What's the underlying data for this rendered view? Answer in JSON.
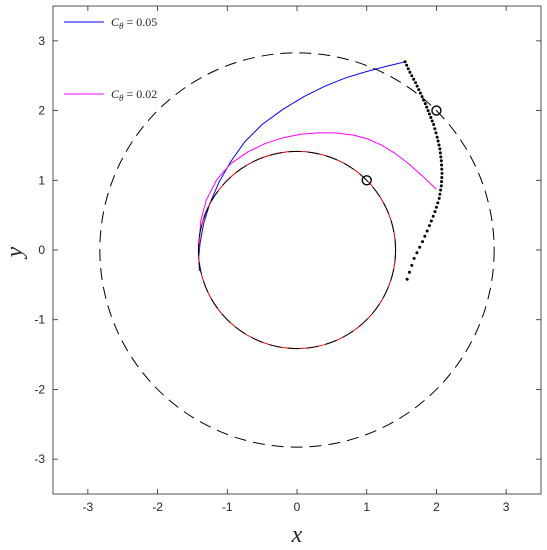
{
  "chart_data": {
    "type": "line",
    "xlabel": "x",
    "ylabel": "y",
    "xlim": [
      -3.5,
      3.5
    ],
    "ylim": [
      -3.5,
      3.5
    ],
    "xticks": [
      -3,
      -2,
      -1,
      0,
      1,
      2,
      3
    ],
    "yticks": [
      -3,
      -2,
      -1,
      0,
      1,
      2,
      3
    ],
    "xtick_labels": [
      "-3",
      "-2",
      "-1",
      "0",
      "1",
      "2",
      "3"
    ],
    "ytick_labels": [
      "-3",
      "-2",
      "-1",
      "0",
      "1",
      "2",
      "3"
    ],
    "grid": false,
    "legend_position": "top-left",
    "legend": [
      {
        "label_prefix": "C",
        "label_sub": "θ",
        "label_suffix": " = 0.05",
        "color": "#0000ff"
      },
      {
        "label_prefix": "C",
        "label_sub": "θ",
        "label_suffix": " = 0.02",
        "color": "#ff00ff"
      }
    ],
    "series": [
      {
        "name": "C_θ = 0.05",
        "color": "#0000ff",
        "x": [
          1.55,
          1.3,
          1.0,
          0.7,
          0.4,
          0.1,
          -0.2,
          -0.5,
          -0.75,
          -0.95,
          -1.12,
          -1.25,
          -1.34,
          -1.39,
          -1.41,
          -1.4
        ],
        "y": [
          2.7,
          2.64,
          2.56,
          2.47,
          2.35,
          2.2,
          2.02,
          1.8,
          1.55,
          1.27,
          0.97,
          0.67,
          0.38,
          0.1,
          -0.1,
          -0.3
        ]
      },
      {
        "name": "C_θ = 0.02",
        "color": "#ff00ff",
        "x": [
          2.0,
          1.8,
          1.6,
          1.4,
          1.2,
          1.0,
          0.8,
          0.55,
          0.3,
          0.05,
          -0.2,
          -0.45,
          -0.7,
          -0.95,
          -1.15,
          -1.3,
          -1.38,
          -1.41
        ],
        "y": [
          0.87,
          1.06,
          1.24,
          1.39,
          1.51,
          1.6,
          1.65,
          1.68,
          1.68,
          1.66,
          1.61,
          1.53,
          1.41,
          1.24,
          1.01,
          0.72,
          0.42,
          0.0
        ]
      },
      {
        "name": "initial orbit",
        "color": "#e00000",
        "kind": "circle",
        "center": [
          0,
          0
        ],
        "radius": 1.414,
        "start_deg": 45,
        "end_deg": 160
      },
      {
        "name": "inner dashed circle",
        "color": "#000000",
        "kind": "circle-dashed",
        "center": [
          0,
          0
        ],
        "radius": 1.414
      },
      {
        "name": "outer dashed circle",
        "color": "#000000",
        "kind": "circle-dashed",
        "center": [
          0,
          0
        ],
        "radius": 2.828
      },
      {
        "name": "dotted path",
        "color": "#000000",
        "kind": "dots",
        "x": [
          1.55,
          1.62,
          1.7,
          1.77,
          1.84,
          1.9,
          1.96,
          2.01,
          2.05,
          2.07,
          2.08,
          2.07,
          2.04,
          1.98,
          1.9,
          1.8,
          1.68,
          1.58
        ],
        "y": [
          2.7,
          2.55,
          2.4,
          2.25,
          2.1,
          1.95,
          1.8,
          1.62,
          1.45,
          1.28,
          1.1,
          0.92,
          0.74,
          0.55,
          0.35,
          0.12,
          -0.12,
          -0.42
        ]
      }
    ],
    "markers": [
      {
        "name": "inner-target-marker",
        "x": 1.0,
        "y": 1.0
      },
      {
        "name": "outer-target-marker",
        "x": 2.0,
        "y": 2.0
      }
    ]
  }
}
